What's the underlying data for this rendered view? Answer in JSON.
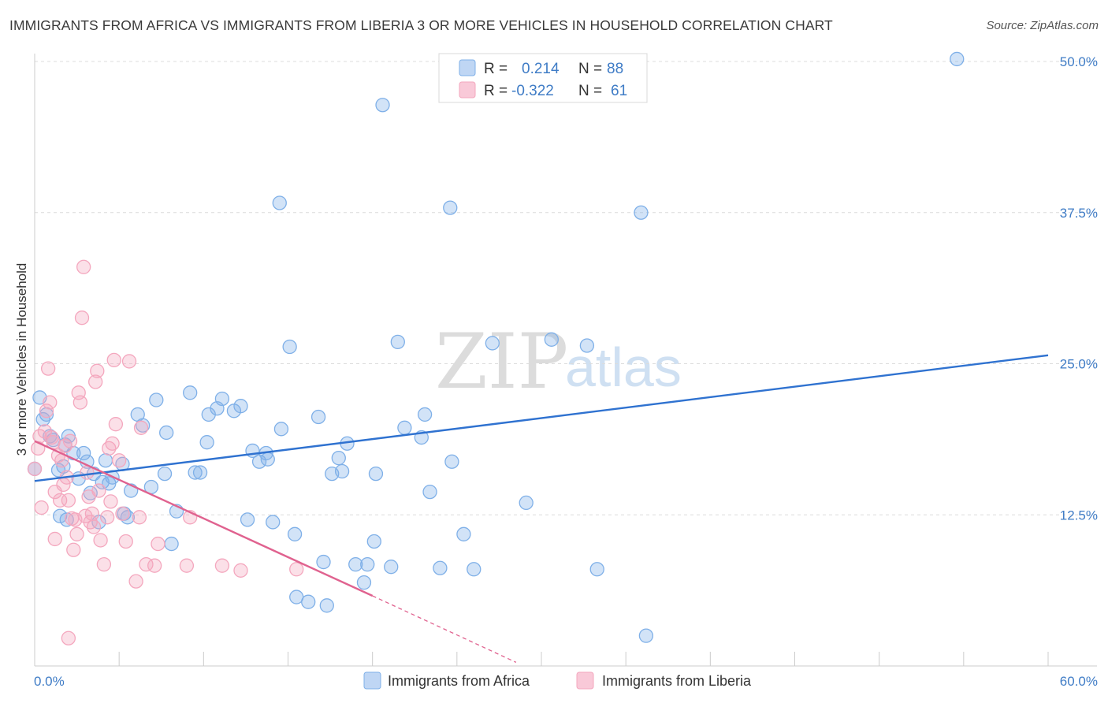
{
  "header": {
    "title": "IMMIGRANTS FROM AFRICA VS IMMIGRANTS FROM LIBERIA 3 OR MORE VEHICLES IN HOUSEHOLD CORRELATION CHART",
    "source": "Source: ZipAtlas.com"
  },
  "legend": {
    "r_label": "R =",
    "n_label": "N =",
    "rows": [
      {
        "r": "0.214",
        "n": "88"
      },
      {
        "r": "-0.322",
        "n": "61"
      }
    ]
  },
  "watermark": {
    "zip": "ZIP",
    "atlas": "atlas"
  },
  "chart_data": {
    "type": "scatter",
    "title": "IMMIGRANTS FROM AFRICA VS IMMIGRANTS FROM LIBERIA 3 OR MORE VEHICLES IN HOUSEHOLD CORRELATION CHART",
    "xlabel": "",
    "ylabel": "3 or more Vehicles in Household",
    "xlim": [
      0,
      60
    ],
    "ylim": [
      0,
      50
    ],
    "x_tick_labels": [
      "0.0%",
      "60.0%"
    ],
    "y_ticks": [
      12.5,
      25.0,
      37.5,
      50.0
    ],
    "y_tick_labels": [
      "12.5%",
      "25.0%",
      "37.5%",
      "50.0%"
    ],
    "grid": true,
    "series": [
      {
        "name": "Immigrants from Africa",
        "color": "#7fb0e8",
        "line_color": "#2f72d0",
        "R": 0.214,
        "N": 88,
        "trend": {
          "x": [
            0,
            60
          ],
          "y": [
            15.3,
            25.7
          ]
        },
        "points": [
          [
            0.3,
            22.2
          ],
          [
            0.7,
            20.8
          ],
          [
            0.9,
            19.0
          ],
          [
            1.1,
            18.7
          ],
          [
            1.4,
            16.2
          ],
          [
            1.5,
            12.4
          ],
          [
            1.7,
            16.5
          ],
          [
            1.8,
            18.3
          ],
          [
            2.0,
            19.0
          ],
          [
            2.3,
            17.6
          ],
          [
            2.6,
            15.5
          ],
          [
            2.9,
            17.6
          ],
          [
            3.1,
            16.9
          ],
          [
            3.3,
            14.3
          ],
          [
            3.5,
            15.9
          ],
          [
            3.8,
            11.9
          ],
          [
            4.0,
            15.2
          ],
          [
            4.2,
            17.0
          ],
          [
            4.4,
            15.1
          ],
          [
            4.6,
            15.6
          ],
          [
            5.2,
            16.7
          ],
          [
            5.3,
            12.6
          ],
          [
            5.5,
            12.3
          ],
          [
            5.7,
            14.5
          ],
          [
            6.1,
            20.8
          ],
          [
            6.4,
            19.9
          ],
          [
            6.9,
            14.8
          ],
          [
            7.2,
            22.0
          ],
          [
            7.7,
            15.9
          ],
          [
            7.8,
            19.3
          ],
          [
            8.1,
            10.1
          ],
          [
            8.4,
            12.8
          ],
          [
            9.2,
            22.6
          ],
          [
            9.5,
            16.0
          ],
          [
            9.8,
            16.0
          ],
          [
            10.2,
            18.5
          ],
          [
            10.3,
            20.8
          ],
          [
            10.8,
            21.3
          ],
          [
            11.1,
            22.1
          ],
          [
            11.8,
            21.1
          ],
          [
            12.2,
            21.5
          ],
          [
            12.6,
            12.1
          ],
          [
            12.9,
            17.8
          ],
          [
            13.3,
            16.9
          ],
          [
            13.7,
            17.6
          ],
          [
            13.8,
            17.1
          ],
          [
            14.1,
            11.9
          ],
          [
            14.5,
            38.3
          ],
          [
            14.6,
            19.6
          ],
          [
            15.1,
            26.4
          ],
          [
            15.4,
            10.9
          ],
          [
            15.5,
            5.7
          ],
          [
            16.2,
            5.3
          ],
          [
            16.8,
            20.6
          ],
          [
            17.1,
            8.6
          ],
          [
            17.3,
            5.0
          ],
          [
            17.6,
            15.9
          ],
          [
            18.0,
            17.2
          ],
          [
            18.2,
            16.1
          ],
          [
            18.5,
            18.4
          ],
          [
            19.0,
            8.4
          ],
          [
            19.5,
            6.9
          ],
          [
            19.7,
            8.4
          ],
          [
            20.1,
            10.3
          ],
          [
            20.2,
            15.9
          ],
          [
            20.6,
            46.4
          ],
          [
            21.1,
            8.2
          ],
          [
            21.5,
            26.8
          ],
          [
            21.9,
            19.7
          ],
          [
            22.9,
            18.9
          ],
          [
            23.1,
            20.8
          ],
          [
            23.4,
            14.4
          ],
          [
            24.0,
            8.1
          ],
          [
            24.6,
            37.9
          ],
          [
            24.7,
            16.9
          ],
          [
            25.4,
            10.9
          ],
          [
            26.0,
            8.0
          ],
          [
            27.1,
            26.7
          ],
          [
            29.1,
            13.5
          ],
          [
            30.6,
            27.0
          ],
          [
            32.7,
            26.5
          ],
          [
            33.3,
            8.0
          ],
          [
            35.9,
            37.5
          ],
          [
            36.2,
            2.5
          ],
          [
            54.6,
            50.2
          ],
          [
            0.0,
            16.3
          ],
          [
            0.5,
            20.4
          ],
          [
            1.9,
            12.1
          ]
        ]
      },
      {
        "name": "Immigrants from Liberia",
        "color": "#f4a7be",
        "line_color": "#e0628f",
        "R": -0.322,
        "N": 61,
        "trend_solid": {
          "x": [
            0,
            20.0
          ],
          "y": [
            18.6,
            5.8
          ]
        },
        "trend_dashed": {
          "x": [
            20.0,
            28.5
          ],
          "y": [
            5.8,
            0.3
          ]
        },
        "points": [
          [
            0.0,
            16.3
          ],
          [
            0.2,
            18.0
          ],
          [
            0.3,
            19.0
          ],
          [
            0.4,
            13.1
          ],
          [
            0.6,
            19.4
          ],
          [
            0.7,
            21.1
          ],
          [
            0.8,
            24.6
          ],
          [
            0.9,
            21.8
          ],
          [
            1.0,
            18.9
          ],
          [
            1.1,
            18.5
          ],
          [
            1.2,
            10.5
          ],
          [
            1.2,
            14.4
          ],
          [
            1.4,
            17.4
          ],
          [
            1.5,
            13.7
          ],
          [
            1.6,
            17.0
          ],
          [
            1.7,
            15.0
          ],
          [
            1.8,
            18.2
          ],
          [
            1.9,
            15.6
          ],
          [
            2.0,
            13.7
          ],
          [
            2.1,
            18.6
          ],
          [
            2.2,
            12.2
          ],
          [
            2.3,
            9.6
          ],
          [
            2.4,
            12.1
          ],
          [
            2.5,
            10.9
          ],
          [
            2.6,
            22.6
          ],
          [
            2.7,
            21.8
          ],
          [
            2.8,
            28.8
          ],
          [
            2.9,
            33.0
          ],
          [
            3.0,
            12.4
          ],
          [
            3.1,
            16.0
          ],
          [
            3.2,
            14.0
          ],
          [
            3.3,
            11.9
          ],
          [
            3.4,
            12.6
          ],
          [
            3.5,
            11.5
          ],
          [
            3.6,
            23.5
          ],
          [
            3.7,
            24.4
          ],
          [
            3.8,
            14.5
          ],
          [
            3.9,
            10.4
          ],
          [
            4.1,
            8.4
          ],
          [
            4.3,
            12.3
          ],
          [
            4.4,
            18.0
          ],
          [
            4.5,
            13.6
          ],
          [
            4.6,
            18.4
          ],
          [
            4.7,
            25.3
          ],
          [
            4.8,
            20.0
          ],
          [
            5.0,
            17.0
          ],
          [
            5.2,
            12.6
          ],
          [
            5.4,
            10.3
          ],
          [
            5.6,
            25.2
          ],
          [
            6.0,
            7.0
          ],
          [
            6.2,
            12.3
          ],
          [
            6.3,
            19.7
          ],
          [
            6.6,
            8.4
          ],
          [
            7.1,
            8.3
          ],
          [
            7.3,
            10.1
          ],
          [
            9.0,
            8.3
          ],
          [
            9.2,
            12.3
          ],
          [
            11.1,
            8.3
          ],
          [
            12.2,
            7.9
          ],
          [
            15.5,
            8.0
          ],
          [
            2.0,
            2.3
          ]
        ]
      }
    ]
  },
  "bottom_legend": [
    "Immigrants from Africa",
    "Immigrants from Liberia"
  ]
}
